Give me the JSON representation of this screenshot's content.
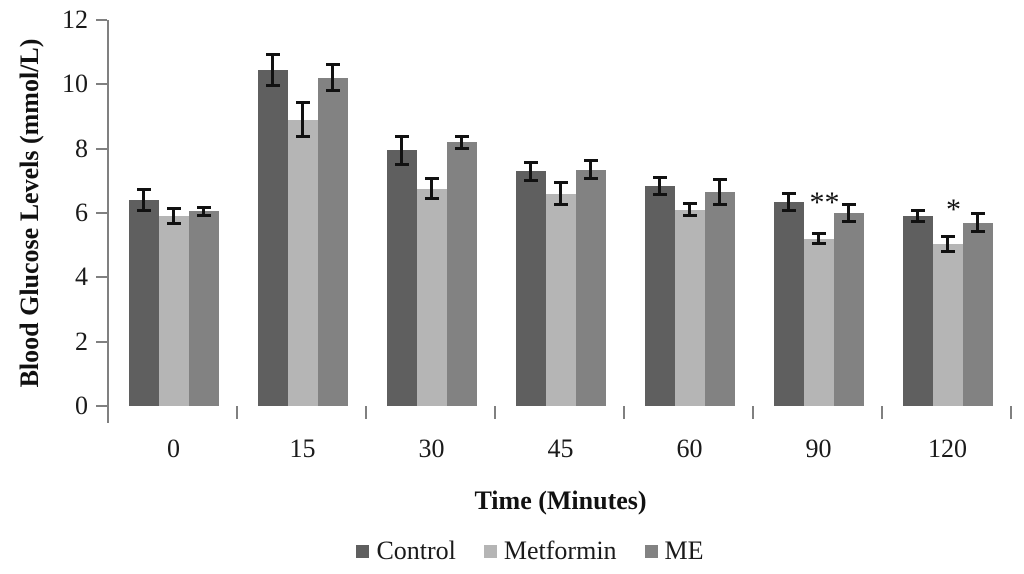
{
  "chart_data": {
    "type": "bar",
    "title": "",
    "ylabel": "Blood Glucose Levels (mmol/L)",
    "xlabel": "Time (Minutes)",
    "ylim": [
      0,
      12
    ],
    "yticks": [
      0,
      2,
      4,
      6,
      8,
      10,
      12
    ],
    "categories": [
      "0",
      "15",
      "30",
      "45",
      "60",
      "90",
      "120"
    ],
    "series": [
      {
        "name": "Control",
        "color": "#5f5f5f",
        "values": [
          6.4,
          10.45,
          7.95,
          7.3,
          6.85,
          6.35,
          5.9
        ],
        "errors": [
          0.35,
          0.5,
          0.45,
          0.3,
          0.28,
          0.28,
          0.18
        ]
      },
      {
        "name": "Metformin",
        "color": "#b5b5b5",
        "values": [
          5.9,
          8.9,
          6.75,
          6.6,
          6.1,
          5.2,
          5.05
        ],
        "errors": [
          0.25,
          0.55,
          0.33,
          0.35,
          0.2,
          0.17,
          0.25
        ]
      },
      {
        "name": "ME",
        "color": "#828282",
        "values": [
          6.05,
          10.2,
          8.2,
          7.35,
          6.65,
          6.0,
          5.7
        ],
        "errors": [
          0.15,
          0.42,
          0.2,
          0.3,
          0.4,
          0.28,
          0.3
        ]
      }
    ],
    "annotations": [
      {
        "category": "90",
        "series": "Metformin",
        "text": "**",
        "y": 6.4
      },
      {
        "category": "120",
        "series": "Metformin",
        "text": "*",
        "y": 6.2
      }
    ],
    "error_bar_color": "#111111",
    "axis_color": "#808080",
    "baseline_color": "#9a9a9a",
    "legend_position": "bottom",
    "grid": false
  }
}
